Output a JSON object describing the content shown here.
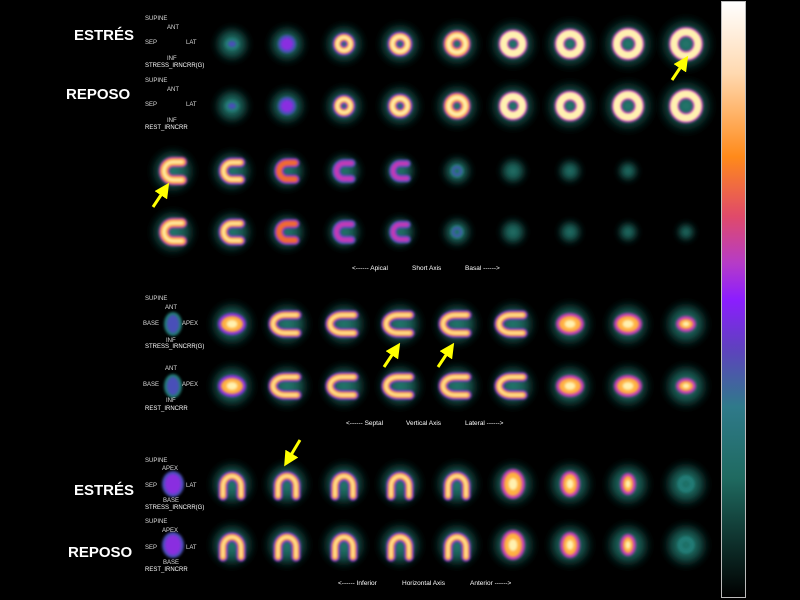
{
  "labels": {
    "stress_top": "ESTRÉS",
    "rest_top": "REPOSO",
    "stress_bottom": "ESTRÉS",
    "rest_bottom": "REPOSO"
  },
  "short_axis": {
    "stress_orientation": {
      "top": "SUPINE",
      "ant": "ANT",
      "sep": "SEP",
      "lat": "LAT",
      "inf": "INF"
    },
    "stress_name": "STRESS_IRNCRR(G)",
    "rest_orientation": {
      "top": "SUPINE",
      "ant": "ANT",
      "sep": "SEP",
      "lat": "LAT",
      "inf": "INF"
    },
    "rest_name": "REST_IRNCRR",
    "caption_left": "<------ Apical",
    "caption_mid": "Short Axis",
    "caption_right": "Basal ------>"
  },
  "vertical_axis": {
    "stress_orientation": {
      "top": "SUPINE",
      "ant": "ANT",
      "base": "BASE",
      "apex": "APEX",
      "inf": "INF"
    },
    "stress_name": "STRESS_IRNCRR(G)",
    "rest_orientation": {
      "ant": "ANT",
      "base": "BASE",
      "apex": "APEX",
      "inf": "INF"
    },
    "rest_name": "REST_IRNCRR",
    "caption_left": "<------ Septal",
    "caption_mid": "Vertical Axis",
    "caption_right": "Lateral ------>"
  },
  "horizontal_axis": {
    "stress_orientation": {
      "top": "SUPINE",
      "apex": "APEX",
      "sep": "SEP",
      "lat": "LAT",
      "base": "BASE"
    },
    "stress_name": "STRESS_IRNCRR(G)",
    "rest_orientation": {
      "top": "SUPINE",
      "apex": "APEX",
      "sep": "SEP",
      "lat": "LAT",
      "base": "BASE"
    },
    "rest_name": "REST_IRNCRR",
    "caption_left": "<------ Inferior",
    "caption_mid": "Horizontal Axis",
    "caption_right": "Anterior ------>"
  },
  "colors": {
    "background": "#000000",
    "arrow": "#ffff00",
    "hot": "#ffe08a",
    "warm": "#ff8a1a",
    "mid": "#9a2bd6",
    "cool": "#1f8a80"
  }
}
